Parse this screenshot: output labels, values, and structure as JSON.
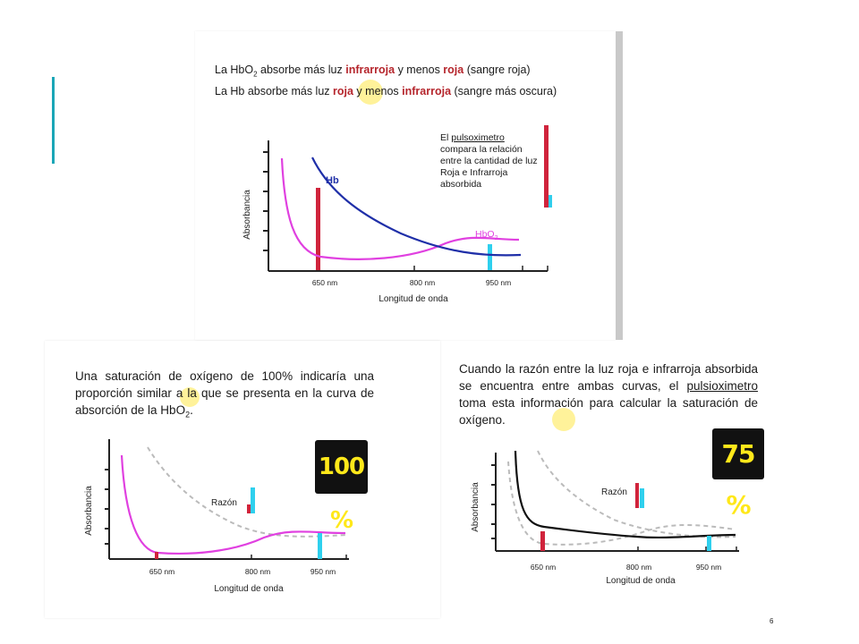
{
  "top_panel": {
    "line1": {
      "a": "La HbO",
      "sub": "2",
      "b": " absorbe más luz ",
      "c": "infrarroja",
      "d": " y menos ",
      "e": "roja",
      "f": " (sangre roja)"
    },
    "line2": {
      "a": "La Hb absorbe más luz ",
      "b": "roja",
      "c": " y ",
      "d": "menos ",
      "e": "infrarroja",
      "f": " (sangre más oscura)"
    },
    "note": {
      "a": "El ",
      "b": "pulsoximetro",
      "c": " compara la relación entre la cantidad de luz Roja e Infrarroja absorbida"
    },
    "chart": {
      "y_label": "Absorbancia",
      "x_label": "Longitud de onda",
      "ticks": [
        "650 nm",
        "800 nm",
        "950 nm"
      ],
      "hb_label": "Hb",
      "hbo2_label": {
        "main": "HbO",
        "sub": "2"
      }
    }
  },
  "left_panel": {
    "para": {
      "a": "Una saturación de oxígeno de 100% indicaría una proporción similar ",
      "b": "a",
      "c": " la que se presenta en la curva de absorción de la HbO",
      "sub": "2",
      "d": "."
    },
    "badge": "100 %",
    "ratio_label": "Razón",
    "chart": {
      "y_label": "Absorbancia",
      "x_label": "Longitud de onda",
      "ticks": [
        "650 nm",
        "800 nm",
        "950 nm"
      ]
    }
  },
  "right_panel": {
    "para": {
      "a": "Cuando la razón entre la luz roja e infrarroja absorbida se encuentra entre ambas curvas, el ",
      "b": "pulsioximetro",
      "c": " toma esta información para calcular la saturación de oxígeno."
    },
    "badge": "75 %",
    "ratio_label": "Razón",
    "chart": {
      "y_label": "Absorbancia",
      "x_label": "Longitud de onda",
      "ticks": [
        "650 nm",
        "800 nm",
        "950 nm"
      ]
    }
  },
  "page_number": "6",
  "colors": {
    "hb": "#1f2fa8",
    "hbo2": "#e040e0",
    "red_bar": "#d0243c",
    "ir_bar": "#2fd0ee",
    "text_red": "#b5252c",
    "accent": "#1aa6b7",
    "badge_text": "#ffe81a"
  }
}
